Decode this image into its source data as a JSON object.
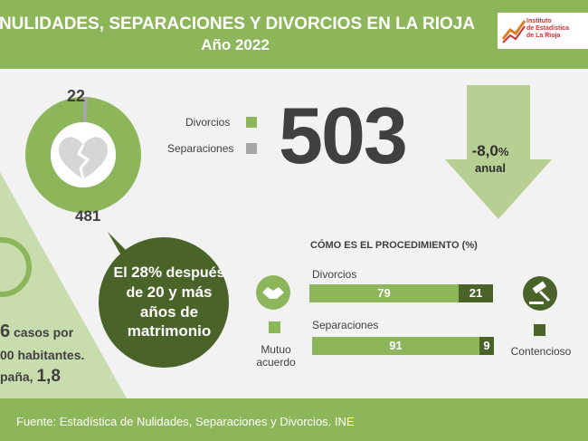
{
  "header": {
    "title": "NULIDADES, SEPARACIONES Y DIVORCIOS EN LA RIOJA",
    "subtitle": "Año 2022",
    "logo": {
      "line1": "Instituto",
      "line2": "de Estadística",
      "line3": "de La Rioja"
    }
  },
  "donut": {
    "separaciones_value": "22",
    "divorcios_value": "481",
    "icon": "broken-heart-icon"
  },
  "legend": {
    "divorcios": "Divorcios",
    "separaciones": "Separaciones",
    "divorcios_color": "#8db65a",
    "separaciones_color": "#a6a6a6"
  },
  "total": {
    "value": "503"
  },
  "change": {
    "value": "-8,0",
    "percent": "%",
    "unit": "anual"
  },
  "bubble": {
    "line1_pre": "El ",
    "line1_pct": "28%",
    "line1_post": " después",
    "line2_pre": "de ",
    "line2_bold": "20 y más",
    "line3": "años de",
    "line4": "matrimonio"
  },
  "procedure": {
    "title": "CÓMO ES EL PROCEDIMIENTO (%)",
    "rows": [
      {
        "label": "Divorcios",
        "mutuo": "79",
        "contencioso": "21"
      },
      {
        "label": "Separaciones",
        "mutuo": "91",
        "contencioso": "9"
      }
    ],
    "mutuo_label_1": "Mutuo",
    "mutuo_label_2": "acuerdo",
    "contencioso_label": "Contencioso",
    "mutuo_icon": "handshake-icon",
    "contencioso_icon": "gavel-icon",
    "mutuo_color": "#8db65a",
    "contencioso_color": "#4a6329"
  },
  "left_panel": {
    "line1_num": "6",
    "line1_text": " casos por",
    "line2": "00 habitantes.",
    "line3_text": "paña, ",
    "line3_num": "1,8"
  },
  "footer": {
    "text": "Fuente: Estadística de Nulidades, Separaciones y Divorcios. INE"
  }
}
